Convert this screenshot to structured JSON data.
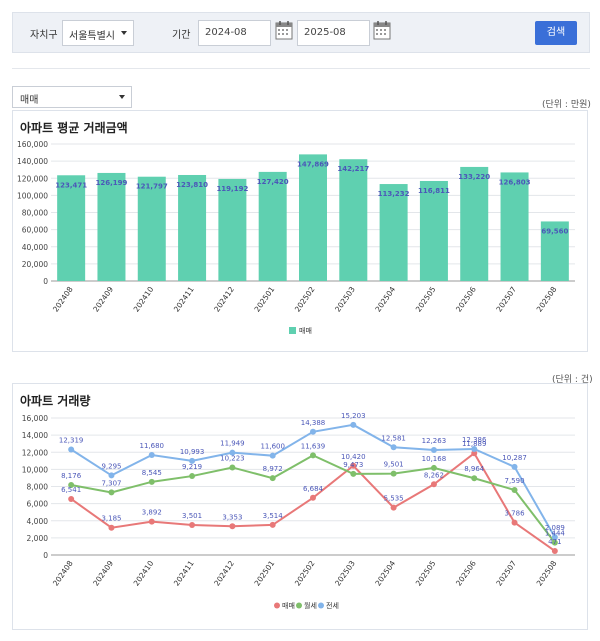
{
  "filter": {
    "region_label": "자치구",
    "region_value": "서울특별시",
    "period_label": "기간",
    "start_date": "2024-08",
    "end_date": "2025-08",
    "search_label": "검색"
  },
  "type_select": {
    "value": "매매"
  },
  "bar_panel": {
    "unit": "(단위 : 만원)",
    "title": "아파트 평균 거래금액"
  },
  "line_panel": {
    "unit": "(단위 : 건)",
    "title": "아파트 거래량"
  },
  "colors": {
    "bar": "#5fd0b0",
    "sale": "#e87878",
    "monthly": "#7fbf6a",
    "jeonse": "#82b4ea",
    "label": "#4b57b8",
    "accent": "#3a6fd8"
  },
  "chart_data": [
    {
      "type": "bar",
      "title": "아파트 평균 거래금액",
      "categories": [
        "202408",
        "202409",
        "202410",
        "202411",
        "202412",
        "202501",
        "202502",
        "202503",
        "202504",
        "202505",
        "202506",
        "202507",
        "202508"
      ],
      "series": [
        {
          "name": "매매",
          "values": [
            123471,
            126199,
            121797,
            123810,
            119192,
            127420,
            147869,
            142217,
            113232,
            116811,
            133220,
            126803,
            69560
          ]
        }
      ],
      "y_ticks": [
        "0",
        "20,000",
        "40,000",
        "60,000",
        "80,000",
        "100,000",
        "120,000",
        "140,000",
        "160,000"
      ],
      "data_labels": [
        "123,471",
        "126,199",
        "121,797",
        "123,810",
        "119,192",
        "127,420",
        "147,869",
        "142,217",
        "113,232",
        "116,811",
        "133,220",
        "126,803",
        "69,560"
      ],
      "ylim": [
        0,
        160000
      ],
      "grid": true,
      "legend": "bottom"
    },
    {
      "type": "line",
      "title": "아파트 거래량",
      "categories": [
        "202408",
        "202409",
        "202410",
        "202411",
        "202412",
        "202501",
        "202502",
        "202503",
        "202504",
        "202505",
        "202506",
        "202507",
        "202508"
      ],
      "series": [
        {
          "name": "매매",
          "values": [
            6541,
            3185,
            3892,
            3501,
            3353,
            3514,
            6684,
            10420,
            5535,
            8262,
            11889,
            3786,
            471
          ],
          "labels": [
            "6,541",
            "3,185",
            "3,892",
            "3,501",
            "3,353",
            "3,514",
            "6,684",
            "10,420",
            "5,535",
            "8,262",
            "11,889",
            "3,786",
            "471"
          ]
        },
        {
          "name": "월세",
          "values": [
            8176,
            7307,
            8545,
            9219,
            10223,
            8972,
            11639,
            9473,
            9501,
            10168,
            8964,
            7590,
            1444
          ],
          "labels": [
            "8,176",
            "7,307",
            "8,545",
            "9,219",
            "10,223",
            "8,972",
            "11,639",
            "9,473",
            "9,501",
            "10,168",
            "8,964",
            "7,590",
            "1,444"
          ]
        },
        {
          "name": "전세",
          "values": [
            12319,
            9295,
            11680,
            10993,
            11949,
            11600,
            14388,
            15203,
            12581,
            12263,
            12386,
            10287,
            2089
          ],
          "labels": [
            "12,319",
            "9,295",
            "11,680",
            "10,993",
            "11,949",
            "11,600",
            "14,388",
            "15,203",
            "12,581",
            "12,263",
            "12,386",
            "10,287",
            "2,089"
          ]
        }
      ],
      "y_ticks": [
        "0",
        "2,000",
        "4,000",
        "6,000",
        "8,000",
        "10,000",
        "12,000",
        "14,000",
        "16,000"
      ],
      "ylim": [
        0,
        16000
      ],
      "grid": true,
      "legend": "bottom"
    }
  ]
}
